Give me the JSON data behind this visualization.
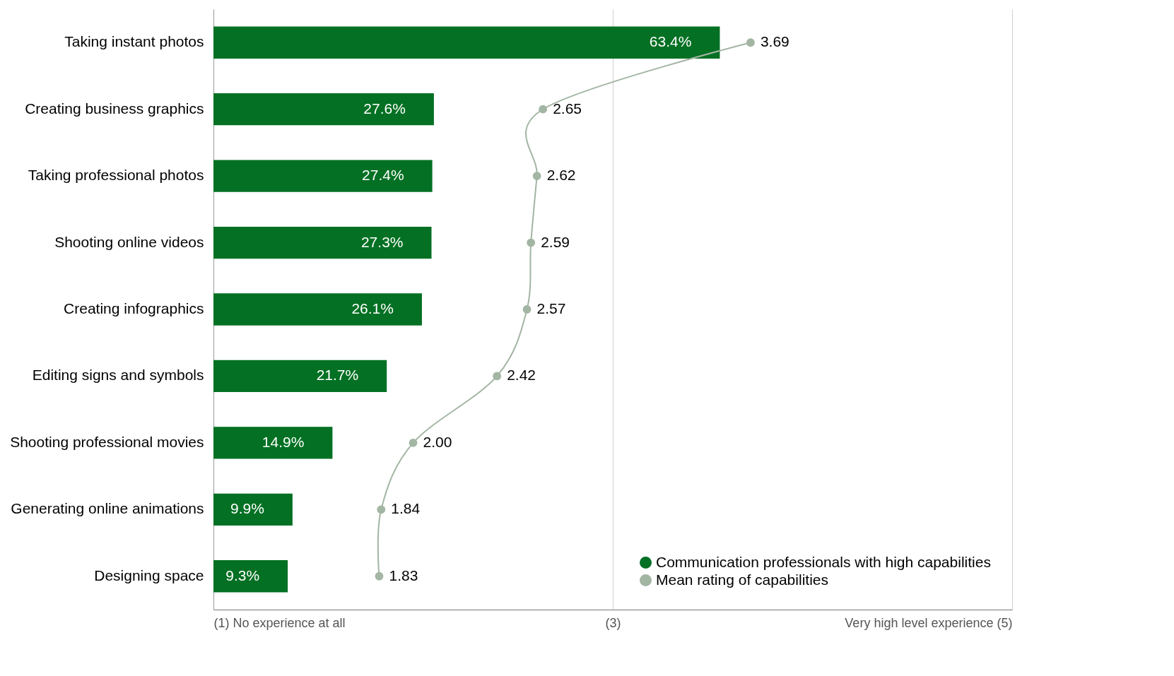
{
  "chart_data": {
    "type": "bar",
    "orientation": "horizontal",
    "categories": [
      "Taking instant photos",
      "Creating business graphics",
      "Taking professional photos",
      "Shooting online videos",
      "Creating infographics",
      "Editing signs and symbols",
      "Shooting professional movies",
      "Generating online animations",
      "Designing space"
    ],
    "xlim": [
      0,
      100
    ],
    "x2lim": [
      1,
      5
    ],
    "x2ticks": [
      {
        "value": 1,
        "label": "(1) No experience at all"
      },
      {
        "value": 3,
        "label": "(3)"
      },
      {
        "value": 5,
        "label": "Very high level experience (5)"
      }
    ],
    "grid": "x",
    "legend": "bottom right",
    "marker": "circle",
    "series": [
      {
        "name": "Communication professionals with high capabilities",
        "color": "#037023",
        "values": [
          63.4,
          27.6,
          27.4,
          27.3,
          26.1,
          21.7,
          14.9,
          9.9,
          9.3
        ],
        "value_labels": [
          "63.4%",
          "27.6%",
          "27.4%",
          "27.3%",
          "26.1%",
          "21.7%",
          "14.9%",
          "9.9%",
          "9.3%"
        ]
      },
      {
        "name": "Mean rating of capabilities",
        "type": "line",
        "axis": "x2",
        "color": "#a3b5a3",
        "values": [
          3.69,
          2.65,
          2.62,
          2.59,
          2.57,
          2.42,
          2.0,
          1.84,
          1.83
        ],
        "value_labels": [
          "3.69",
          "2.65",
          "2.62",
          "2.59",
          "2.57",
          "2.42",
          "2.00",
          "1.84",
          "1.83"
        ]
      }
    ]
  }
}
